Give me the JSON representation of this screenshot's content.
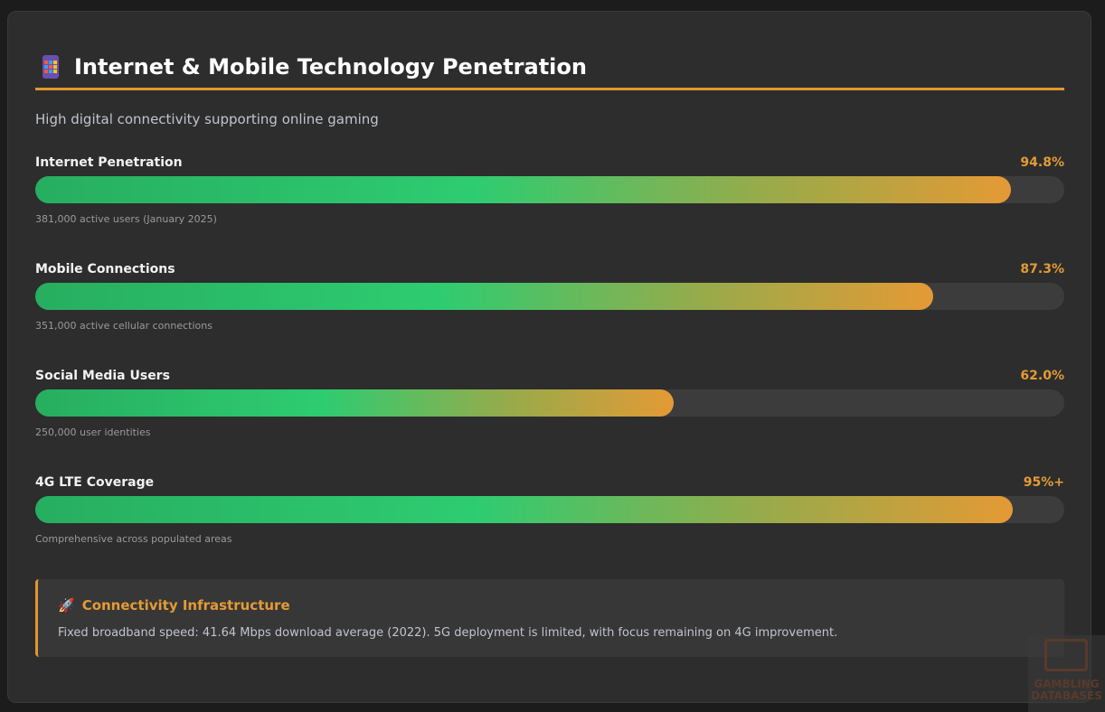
{
  "header": {
    "title": "Internet & Mobile Technology Penetration",
    "icon": "mobile-phone-icon",
    "subtitle": "High digital connectivity supporting online gaming"
  },
  "colors": {
    "accent": "#e0982e",
    "green": "#2ecc71"
  },
  "metrics": [
    {
      "label": "Internet Penetration",
      "value": "94.8%",
      "percent": 94.8,
      "note": "381,000 active users (January 2025)"
    },
    {
      "label": "Mobile Connections",
      "value": "87.3%",
      "percent": 87.3,
      "note": "351,000 active cellular connections"
    },
    {
      "label": "Social Media Users",
      "value": "62.0%",
      "percent": 62.0,
      "note": "250,000 user identities"
    },
    {
      "label": "4G LTE Coverage",
      "value": "95%+",
      "percent": 95,
      "note": "Comprehensive across populated areas"
    }
  ],
  "callout": {
    "icon": "rocket-icon",
    "title": "Connectivity Infrastructure",
    "text": "Fixed broadband speed: 41.64 Mbps download average (2022). 5G deployment is limited, with focus remaining on 4G improvement."
  },
  "watermark": {
    "line1": "GAMBLING",
    "line2": "DATABASES"
  }
}
